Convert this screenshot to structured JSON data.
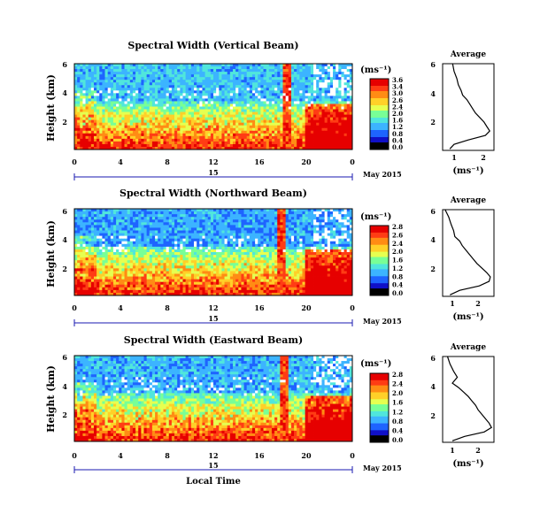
{
  "figure": {
    "xlabel": "Local Time",
    "date_label": "May 2015",
    "day_label": "15",
    "x_ticks": [
      "0",
      "4",
      "8",
      "12",
      "16",
      "20",
      "0"
    ],
    "colorbar_unit": "(ms⁻¹)",
    "avg_title": "Average",
    "avg_xlabel": "(ms⁻¹)",
    "ylabel": "Height (km)",
    "colors": {
      "colormap": [
        "#000000",
        "#1010c8",
        "#1e64ff",
        "#3cb4ff",
        "#50e6dc",
        "#78ff96",
        "#e6ff50",
        "#ffd028",
        "#ff8c14",
        "#ff3c14",
        "#e60000"
      ]
    }
  },
  "chart_data": [
    {
      "type": "heatmap",
      "title": "Spectral Width (Vertical Beam)",
      "xlabel": "Local Time",
      "ylabel": "Height (km)",
      "x_range_hours": [
        0,
        24
      ],
      "y_ticks": [
        "6",
        "4",
        "2"
      ],
      "colorbar": {
        "unit": "(ms⁻¹)",
        "ticks": [
          "3.6",
          "3.4",
          "3.0",
          "2.6",
          "2.4",
          "2.0",
          "1.6",
          "1.2",
          "0.8",
          "0.4",
          "0.0"
        ]
      },
      "features": {
        "spike_hour": 18.3,
        "gap_start": 0.25,
        "gap_end": 0.52,
        "base_level": 0.34
      },
      "average_profile": {
        "title": "Average",
        "xlabel": "(ms⁻¹)",
        "x_ticks": [
          "1",
          "2"
        ],
        "x_range": [
          0.5,
          2.3
        ],
        "y_ticks": [
          "6",
          "4",
          "2"
        ],
        "y_range": [
          0.2,
          6
        ],
        "x": [
          0.85,
          0.9,
          1.0,
          1.05,
          1.15,
          1.2,
          1.35,
          1.45,
          1.55,
          1.65,
          1.8,
          1.95,
          2.05,
          2.15,
          2.0,
          1.4,
          0.9,
          0.75
        ],
        "y": [
          6.0,
          5.5,
          5.0,
          4.6,
          4.2,
          3.9,
          3.6,
          3.3,
          3.0,
          2.7,
          2.4,
          2.1,
          1.8,
          1.5,
          1.2,
          0.9,
          0.6,
          0.3
        ]
      }
    },
    {
      "type": "heatmap",
      "title": "Spectral Width (Northward Beam)",
      "xlabel": "Local Time",
      "ylabel": "Height (km)",
      "x_range_hours": [
        0,
        24
      ],
      "y_ticks": [
        "6",
        "4",
        "2"
      ],
      "colorbar": {
        "unit": "(ms⁻¹)",
        "ticks": [
          "2.8",
          "2.6",
          "2.4",
          "2.0",
          "1.6",
          "1.2",
          "0.8",
          "0.4",
          "0.0"
        ]
      },
      "features": {
        "spike_hour": 17.8,
        "gap_start": 0.3,
        "gap_end": 0.5,
        "base_level": 0.3
      },
      "average_profile": {
        "title": "Average",
        "xlabel": "(ms⁻¹)",
        "x_ticks": [
          "1",
          "2"
        ],
        "x_range": [
          0.5,
          2.6
        ],
        "y_ticks": [
          "6",
          "4",
          "2"
        ],
        "y_range": [
          0.2,
          6
        ],
        "x": [
          0.6,
          0.75,
          0.85,
          0.95,
          1.0,
          1.2,
          1.3,
          1.45,
          1.6,
          1.75,
          1.9,
          2.1,
          2.3,
          2.45,
          2.4,
          2.0,
          1.2,
          0.8
        ],
        "y": [
          6.0,
          5.5,
          5.0,
          4.6,
          4.2,
          3.9,
          3.6,
          3.3,
          3.0,
          2.7,
          2.4,
          2.1,
          1.8,
          1.5,
          1.2,
          0.9,
          0.6,
          0.3
        ]
      }
    },
    {
      "type": "heatmap",
      "title": "Spectral Width (Eastward Beam)",
      "xlabel": "Local Time",
      "ylabel": "Height (km)",
      "x_range_hours": [
        0,
        24
      ],
      "y_ticks": [
        "6",
        "4",
        "2"
      ],
      "colorbar": {
        "unit": "(ms⁻¹)",
        "ticks": [
          "2.8",
          "2.4",
          "2.0",
          "1.6",
          "1.2",
          "0.8",
          "0.4",
          "0.0"
        ]
      },
      "features": {
        "spike_hour": 18.0,
        "gap_start": 0.22,
        "gap_end": 0.45,
        "base_level": 0.32
      },
      "average_profile": {
        "title": "Average",
        "xlabel": "(ms⁻¹)",
        "x_ticks": [
          "1",
          "2"
        ],
        "x_range": [
          0.5,
          2.6
        ],
        "y_ticks": [
          "6",
          "4",
          "2"
        ],
        "y_range": [
          0.2,
          6
        ],
        "x": [
          0.7,
          0.8,
          0.95,
          1.1,
          0.9,
          1.15,
          1.35,
          1.55,
          1.7,
          1.85,
          1.95,
          2.1,
          2.25,
          2.4,
          2.5,
          2.2,
          1.4,
          0.9
        ],
        "y": [
          6.0,
          5.5,
          5.0,
          4.6,
          4.2,
          3.9,
          3.6,
          3.3,
          3.0,
          2.7,
          2.4,
          2.1,
          1.8,
          1.5,
          1.2,
          0.9,
          0.6,
          0.3
        ]
      }
    }
  ]
}
